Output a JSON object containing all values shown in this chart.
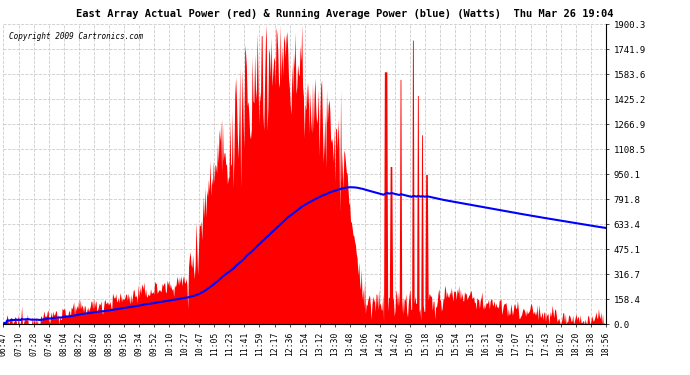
{
  "title": "East Array Actual Power (red) & Running Average Power (blue) (Watts)  Thu Mar 26 19:04",
  "copyright": "Copyright 2009 Cartronics.com",
  "ylabel_right_ticks": [
    0.0,
    158.4,
    316.7,
    475.1,
    633.4,
    791.8,
    950.1,
    1108.5,
    1266.9,
    1425.2,
    1583.6,
    1741.9,
    1900.3
  ],
  "ymax": 1900.3,
  "ymin": 0.0,
  "grid_color": "#cccccc",
  "fill_color": "#ff0000",
  "avg_color": "#0000ff",
  "x_labels": [
    "06:47",
    "07:10",
    "07:28",
    "07:46",
    "08:04",
    "08:22",
    "08:40",
    "08:58",
    "09:16",
    "09:34",
    "09:52",
    "10:10",
    "10:27",
    "10:47",
    "11:05",
    "11:23",
    "11:41",
    "11:59",
    "12:17",
    "12:36",
    "12:54",
    "13:12",
    "13:30",
    "13:48",
    "14:06",
    "14:24",
    "14:42",
    "15:00",
    "15:18",
    "15:36",
    "15:54",
    "16:13",
    "16:31",
    "16:49",
    "17:07",
    "17:25",
    "17:43",
    "18:02",
    "18:20",
    "18:38",
    "18:56"
  ]
}
